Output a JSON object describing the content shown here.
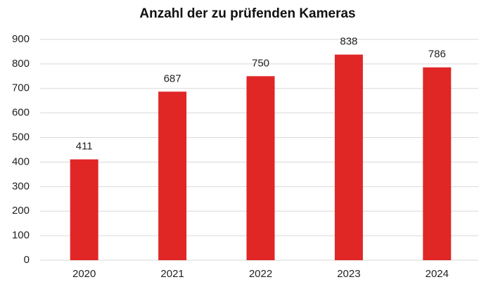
{
  "chart_data": {
    "type": "bar",
    "title": "Anzahl der zu prüfenden Kameras",
    "categories": [
      "2020",
      "2021",
      "2022",
      "2023",
      "2024"
    ],
    "values": [
      411,
      687,
      750,
      838,
      786
    ],
    "color": "#e02726",
    "ylim": [
      0,
      900
    ],
    "yticks": [
      0,
      100,
      200,
      300,
      400,
      500,
      600,
      700,
      800,
      900
    ],
    "grid": true
  }
}
